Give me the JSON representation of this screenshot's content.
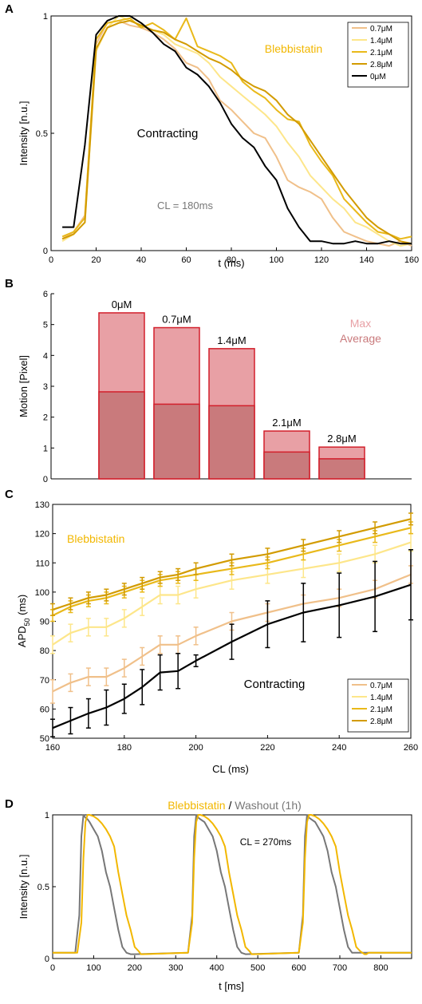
{
  "colors": {
    "c07": "#f0c08a",
    "c14": "#fde68a",
    "c21": "#e9b91a",
    "c28": "#d29b00",
    "c0": "#000000",
    "orange": "#f2b700",
    "gray": "#777777",
    "bar_max": "#e8a0a5",
    "bar_avg": "#c97a7c",
    "bar_edge": "#d21f2b"
  },
  "chart_data": [
    {
      "panel": "A",
      "type": "line",
      "xlabel": "t (ms)",
      "ylabel": "Intensity [n.u.]",
      "xlim": [
        0,
        160
      ],
      "ylim": [
        0,
        1
      ],
      "xticks": [
        "0",
        "20",
        "40",
        "60",
        "80",
        "100",
        "120",
        "140",
        "160"
      ],
      "yticks": [
        "0",
        "0.5",
        "1"
      ],
      "annotations": [
        "Blebbistatin",
        "Contracting",
        "CL = 180ms"
      ],
      "legend": [
        "0.7μM",
        "1.4μM",
        "2.1μM",
        "2.8μM",
        "0μM"
      ],
      "series": [
        {
          "name": "0.7μM",
          "color": "c07",
          "x": [
            5,
            10,
            15,
            20,
            25,
            30,
            35,
            40,
            45,
            50,
            55,
            60,
            65,
            70,
            75,
            80,
            85,
            90,
            95,
            100,
            105,
            110,
            115,
            120,
            125,
            130,
            135,
            140,
            145,
            150,
            155,
            160
          ],
          "y": [
            0.05,
            0.08,
            0.15,
            0.88,
            0.97,
            0.98,
            0.96,
            0.95,
            0.93,
            0.9,
            0.86,
            0.8,
            0.78,
            0.73,
            0.64,
            0.6,
            0.55,
            0.5,
            0.48,
            0.4,
            0.3,
            0.27,
            0.25,
            0.22,
            0.14,
            0.08,
            0.06,
            0.04,
            0.03,
            0.02,
            0.04,
            0.02
          ]
        },
        {
          "name": "1.4μM",
          "color": "c14",
          "x": [
            5,
            10,
            15,
            20,
            25,
            30,
            35,
            40,
            45,
            50,
            55,
            60,
            65,
            70,
            75,
            80,
            85,
            90,
            95,
            100,
            105,
            110,
            115,
            120,
            125,
            130,
            135,
            140,
            145,
            150,
            155,
            160
          ],
          "y": [
            0.04,
            0.07,
            0.12,
            0.85,
            0.95,
            1.0,
            0.98,
            0.96,
            0.94,
            0.92,
            0.88,
            0.86,
            0.84,
            0.8,
            0.74,
            0.7,
            0.66,
            0.62,
            0.58,
            0.53,
            0.46,
            0.4,
            0.32,
            0.27,
            0.22,
            0.18,
            0.12,
            0.1,
            0.07,
            0.04,
            0.02,
            0.03
          ]
        },
        {
          "name": "2.1μM",
          "color": "c21",
          "x": [
            5,
            10,
            15,
            20,
            25,
            30,
            35,
            40,
            45,
            50,
            55,
            60,
            65,
            70,
            75,
            80,
            85,
            90,
            95,
            100,
            105,
            110,
            115,
            120,
            125,
            130,
            135,
            140,
            145,
            150,
            155,
            160
          ],
          "y": [
            0.06,
            0.08,
            0.14,
            0.9,
            0.97,
            0.98,
            0.99,
            0.95,
            0.97,
            0.94,
            0.9,
            0.99,
            0.87,
            0.85,
            0.83,
            0.8,
            0.72,
            0.68,
            0.65,
            0.6,
            0.56,
            0.55,
            0.45,
            0.38,
            0.32,
            0.22,
            0.17,
            0.12,
            0.08,
            0.07,
            0.05,
            0.06
          ]
        },
        {
          "name": "2.8μM",
          "color": "c28",
          "x": [
            5,
            10,
            15,
            20,
            25,
            30,
            35,
            40,
            45,
            50,
            55,
            60,
            65,
            70,
            75,
            80,
            85,
            90,
            95,
            100,
            105,
            110,
            115,
            120,
            125,
            130,
            135,
            140,
            145,
            150,
            155,
            160
          ],
          "y": [
            0.05,
            0.07,
            0.12,
            0.86,
            0.95,
            0.97,
            0.98,
            0.96,
            0.94,
            0.93,
            0.9,
            0.88,
            0.85,
            0.82,
            0.8,
            0.77,
            0.73,
            0.7,
            0.68,
            0.64,
            0.58,
            0.54,
            0.47,
            0.4,
            0.33,
            0.26,
            0.2,
            0.14,
            0.1,
            0.07,
            0.04,
            0.03
          ]
        },
        {
          "name": "0μM",
          "color": "c0",
          "x": [
            5,
            10,
            15,
            20,
            25,
            30,
            35,
            40,
            45,
            50,
            55,
            60,
            65,
            70,
            75,
            80,
            85,
            90,
            95,
            100,
            105,
            110,
            115,
            120,
            125,
            130,
            135,
            140,
            145,
            150,
            155,
            160
          ],
          "y": [
            0.1,
            0.1,
            0.45,
            0.92,
            0.98,
            1.0,
            1.0,
            0.97,
            0.93,
            0.88,
            0.85,
            0.78,
            0.75,
            0.7,
            0.63,
            0.54,
            0.48,
            0.44,
            0.36,
            0.3,
            0.18,
            0.1,
            0.04,
            0.04,
            0.03,
            0.03,
            0.04,
            0.03,
            0.03,
            0.04,
            0.03,
            0.03
          ]
        }
      ]
    },
    {
      "panel": "B",
      "type": "bar",
      "ylabel": "Motion [Pixel]",
      "ylim": [
        0,
        6
      ],
      "yticks": [
        "0",
        "1",
        "2",
        "3",
        "4",
        "5",
        "6"
      ],
      "categories": [
        "0μM",
        "0.7μM",
        "1.4μM",
        "2.1μM",
        "2.8μM"
      ],
      "series": [
        {
          "name": "Max",
          "values": [
            5.38,
            4.9,
            4.22,
            1.55,
            1.03
          ]
        },
        {
          "name": "Average",
          "values": [
            2.82,
            2.42,
            2.37,
            0.87,
            0.65
          ]
        }
      ]
    },
    {
      "panel": "C",
      "type": "line",
      "xlabel": "CL (ms)",
      "ylabel": "APD",
      "ylabel_sub": "50",
      "ylabel_unit": " (ms)",
      "xlim": [
        160,
        260
      ],
      "ylim": [
        50,
        130
      ],
      "xticks": [
        "160",
        "180",
        "200",
        "220",
        "240",
        "260"
      ],
      "yticks": [
        "50",
        "60",
        "70",
        "80",
        "90",
        "100",
        "110",
        "120",
        "130"
      ],
      "annotations": [
        "Blebbistatin",
        "Contracting"
      ],
      "legend": [
        "0.7μM",
        "1.4μM",
        "2.1μM",
        "2.8μM"
      ],
      "series": [
        {
          "name": "0.7μM",
          "color": "c07",
          "x": [
            160,
            165,
            170,
            175,
            180,
            185,
            190,
            195,
            200,
            210,
            220,
            230,
            240,
            250,
            260
          ],
          "y": [
            66,
            69,
            71,
            71,
            74,
            78,
            82,
            82,
            85,
            90,
            93,
            96,
            98,
            101,
            106
          ],
          "err": [
            4,
            3,
            3,
            3,
            3,
            3,
            3,
            3,
            3,
            3,
            3,
            3,
            3,
            3,
            3
          ]
        },
        {
          "name": "1.4μM",
          "color": "c14",
          "x": [
            160,
            165,
            170,
            175,
            180,
            185,
            190,
            195,
            200,
            210,
            220,
            230,
            240,
            250,
            260
          ],
          "y": [
            82,
            86,
            88,
            88,
            91,
            95,
            99,
            99,
            101,
            104,
            106,
            108,
            110,
            113,
            117
          ],
          "err": [
            3,
            3,
            3,
            3,
            3,
            3,
            3,
            3,
            3,
            3,
            3,
            3,
            3,
            3,
            3
          ]
        },
        {
          "name": "2.1μM",
          "color": "c21",
          "x": [
            160,
            165,
            170,
            175,
            180,
            185,
            190,
            195,
            200,
            210,
            220,
            230,
            240,
            250,
            260
          ],
          "y": [
            92,
            95,
            97,
            98,
            100,
            102,
            104,
            105,
            106,
            108,
            110,
            113,
            116,
            119,
            122
          ],
          "err": [
            2,
            2,
            2,
            2,
            2,
            2,
            2,
            2,
            2,
            2,
            2,
            2,
            2,
            2,
            2
          ]
        },
        {
          "name": "2.8μM",
          "color": "c28",
          "x": [
            160,
            165,
            170,
            175,
            180,
            185,
            190,
            195,
            200,
            210,
            220,
            230,
            240,
            250,
            260
          ],
          "y": [
            94,
            96,
            98,
            99,
            101,
            103,
            105,
            106,
            108,
            111,
            113,
            116,
            119,
            122,
            125
          ],
          "err": [
            2,
            2,
            2,
            2,
            2,
            2,
            2,
            2,
            2,
            2,
            2,
            2,
            2,
            2,
            2
          ]
        },
        {
          "name": "0μM",
          "color": "c0",
          "x": [
            160,
            165,
            170,
            175,
            180,
            185,
            190,
            195,
            200,
            210,
            220,
            230,
            240,
            250,
            260
          ],
          "y": [
            53.5,
            56,
            58.5,
            60.5,
            63.5,
            67.5,
            72.5,
            73,
            76.5,
            83,
            89,
            93,
            95.5,
            98.5,
            102.5
          ],
          "err": [
            3,
            4.5,
            5,
            6,
            5,
            6,
            6,
            6,
            2,
            6,
            8,
            10,
            11,
            12,
            12
          ]
        }
      ]
    },
    {
      "panel": "D",
      "type": "line",
      "title_a": "Blebbistatin",
      "title_sep": " / ",
      "title_b": "Washout (1h)",
      "xlabel": "t [ms]",
      "ylabel": "Intensity [n.u.]",
      "xlim": [
        0,
        875
      ],
      "ylim": [
        0,
        1
      ],
      "xticks": [
        "0",
        "100",
        "200",
        "300",
        "400",
        "500",
        "600",
        "700",
        "800"
      ],
      "yticks": [
        "0",
        "0.5",
        "1"
      ],
      "annotations": [
        "CL = 270ms"
      ],
      "series": [
        {
          "name": "Blebbistatin",
          "color": "orange",
          "x": [
            0,
            60,
            70,
            75,
            80,
            85,
            90,
            100,
            110,
            120,
            130,
            140,
            150,
            160,
            170,
            180,
            190,
            200,
            210,
            215,
            220,
            330,
            340,
            345,
            350,
            355,
            360,
            370,
            380,
            390,
            400,
            410,
            420,
            430,
            440,
            450,
            460,
            470,
            480,
            485,
            490,
            600,
            610,
            615,
            620,
            625,
            630,
            640,
            650,
            660,
            670,
            680,
            690,
            700,
            710,
            720,
            730,
            740,
            750,
            760,
            765,
            770,
            875
          ],
          "y": [
            0.04,
            0.04,
            0.25,
            0.7,
            0.95,
            1.0,
            1.0,
            0.99,
            0.97,
            0.94,
            0.9,
            0.85,
            0.78,
            0.6,
            0.45,
            0.3,
            0.2,
            0.08,
            0.05,
            0.03,
            0.03,
            0.04,
            0.25,
            0.7,
            0.95,
            1.0,
            1.0,
            0.99,
            0.97,
            0.94,
            0.9,
            0.85,
            0.78,
            0.6,
            0.45,
            0.3,
            0.2,
            0.08,
            0.05,
            0.03,
            0.03,
            0.04,
            0.25,
            0.7,
            0.95,
            1.0,
            1.0,
            0.99,
            0.97,
            0.94,
            0.9,
            0.85,
            0.78,
            0.6,
            0.45,
            0.3,
            0.2,
            0.08,
            0.05,
            0.03,
            0.03,
            0.04,
            0.04
          ]
        },
        {
          "name": "Washout (1h)",
          "color": "gray",
          "x": [
            0,
            55,
            65,
            70,
            75,
            80,
            85,
            90,
            100,
            110,
            120,
            130,
            140,
            150,
            160,
            170,
            180,
            190,
            200,
            330,
            340,
            345,
            350,
            355,
            360,
            370,
            380,
            390,
            400,
            410,
            420,
            430,
            440,
            450,
            460,
            470,
            600,
            610,
            615,
            620,
            625,
            630,
            640,
            650,
            660,
            670,
            680,
            690,
            700,
            710,
            720,
            730,
            875
          ],
          "y": [
            0.04,
            0.04,
            0.3,
            0.85,
            1.0,
            0.98,
            0.97,
            0.95,
            0.9,
            0.85,
            0.75,
            0.6,
            0.5,
            0.35,
            0.2,
            0.08,
            0.04,
            0.03,
            0.03,
            0.04,
            0.3,
            0.85,
            1.0,
            0.98,
            0.97,
            0.95,
            0.9,
            0.85,
            0.75,
            0.6,
            0.5,
            0.35,
            0.2,
            0.08,
            0.04,
            0.03,
            0.04,
            0.3,
            0.85,
            1.0,
            0.98,
            0.97,
            0.95,
            0.9,
            0.85,
            0.75,
            0.6,
            0.5,
            0.35,
            0.2,
            0.08,
            0.04,
            0.04
          ]
        }
      ]
    }
  ]
}
